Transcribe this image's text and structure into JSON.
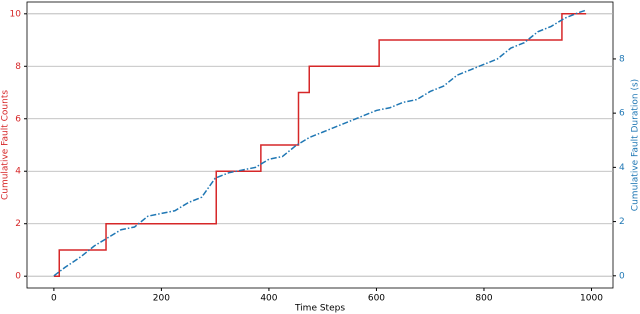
{
  "chart_data": {
    "type": "line",
    "xlabel": "Time Steps",
    "ylabel": "Cumulative Fault Counts",
    "y2label": "Cumulative Fault Duration (s)",
    "xlim": [
      -50,
      1040
    ],
    "xticks": [
      0,
      200,
      400,
      600,
      800,
      1000
    ],
    "ylim": [
      -0.45,
      10.45
    ],
    "yticks": [
      0,
      2,
      4,
      6,
      8,
      10
    ],
    "y2lim": [
      -0.45,
      10.1
    ],
    "y2ticks": [
      0,
      2,
      4,
      6,
      8
    ],
    "grid": true,
    "series": [
      {
        "name": "Cumulative Fault Counts",
        "color": "#d62728",
        "step": "post",
        "x": [
          0,
          10,
          97,
          302,
          385,
          455,
          475,
          605,
          945,
          990
        ],
        "values": [
          0,
          1,
          2,
          4,
          5,
          7,
          8,
          9,
          10,
          10
        ]
      },
      {
        "name": "Cumulative Fault Duration (s)",
        "color": "#1f77b4",
        "axis": "y2",
        "dash": "dashdot",
        "x": [
          0,
          20,
          50,
          75,
          100,
          125,
          150,
          175,
          200,
          225,
          250,
          275,
          300,
          325,
          350,
          375,
          400,
          425,
          450,
          475,
          500,
          525,
          550,
          575,
          600,
          625,
          650,
          675,
          700,
          725,
          750,
          775,
          800,
          825,
          850,
          875,
          900,
          925,
          950,
          975,
          990
        ],
        "values": [
          0,
          0.3,
          0.7,
          1.1,
          1.4,
          1.7,
          1.8,
          2.2,
          2.3,
          2.4,
          2.7,
          2.9,
          3.6,
          3.8,
          3.9,
          4.0,
          4.3,
          4.4,
          4.8,
          5.1,
          5.3,
          5.5,
          5.7,
          5.9,
          6.1,
          6.2,
          6.4,
          6.5,
          6.8,
          7.0,
          7.4,
          7.6,
          7.8,
          8.0,
          8.4,
          8.6,
          9.0,
          9.2,
          9.5,
          9.7,
          9.8
        ]
      }
    ]
  }
}
